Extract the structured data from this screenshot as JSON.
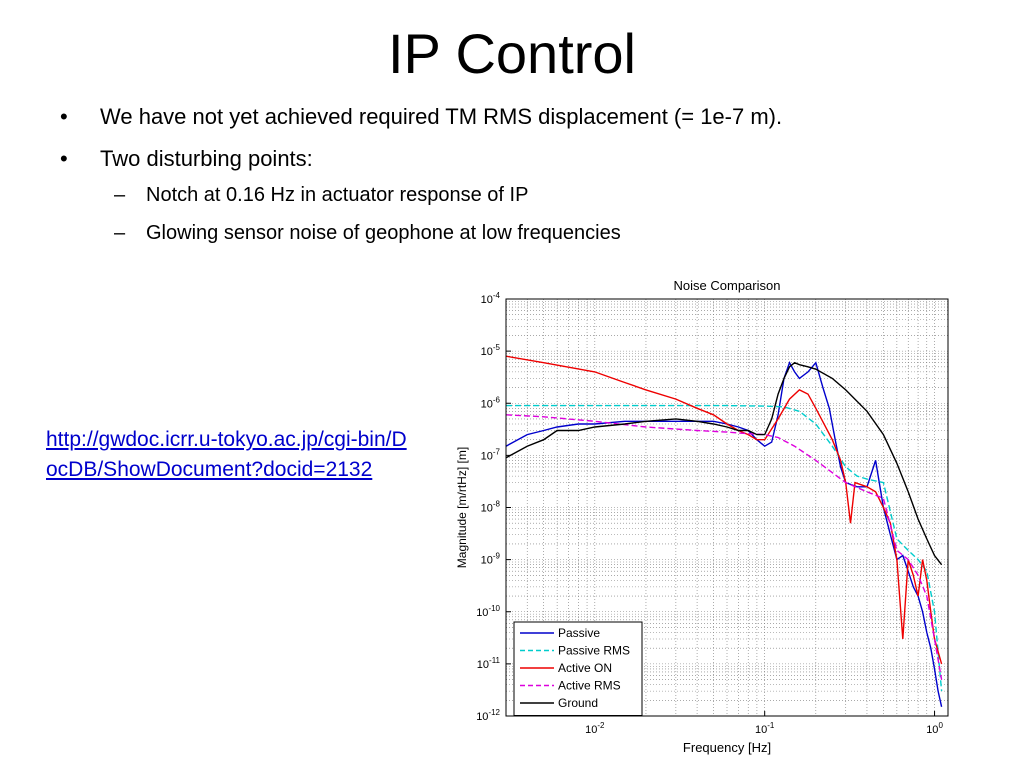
{
  "slide": {
    "title": "IP Control",
    "bullets": [
      {
        "text": "We have not yet achieved required TM RMS displacement (= 1e-7 m).",
        "sub": []
      },
      {
        "text": "Two disturbing points:",
        "sub": [
          "Notch at 0.16 Hz in actuator response of IP",
          "Glowing sensor noise of geophone at low frequencies"
        ]
      }
    ],
    "bullet_char": "•",
    "dash_char": "–",
    "link_text": "http://gwdoc.icrr.u-tokyo.ac.jp/cgi-bin/DocDB/ShowDocument?docid=2132"
  },
  "chart_data": {
    "type": "line",
    "title": "Noise Comparison",
    "xlabel": "Frequency [Hz]",
    "ylabel": "Magnitude [m/rtHz] [m]",
    "x_scale": "log",
    "y_scale": "log",
    "xlim": [
      0.003,
      1.2
    ],
    "ylim": [
      1e-12,
      0.0001
    ],
    "x_ticks": [
      {
        "value": 0.01,
        "label": "10^-2"
      },
      {
        "value": 0.1,
        "label": "10^-1"
      },
      {
        "value": 1,
        "label": "10^0"
      }
    ],
    "y_ticks": [
      {
        "value": 0.0001,
        "label": "10^-4"
      },
      {
        "value": 1e-05,
        "label": "10^-5"
      },
      {
        "value": 1e-06,
        "label": "10^-6"
      },
      {
        "value": 1e-07,
        "label": "10^-7"
      },
      {
        "value": 1e-08,
        "label": "10^-8"
      },
      {
        "value": 1e-09,
        "label": "10^-9"
      },
      {
        "value": 1e-10,
        "label": "10^-10"
      },
      {
        "value": 1e-11,
        "label": "10^-11"
      },
      {
        "value": 1e-12,
        "label": "10^-12"
      }
    ],
    "grid": true,
    "legend_position": "bottom-left",
    "series": [
      {
        "name": "Passive",
        "color": "#0000cc",
        "dash": "solid",
        "points": [
          [
            0.003,
            1.5e-07
          ],
          [
            0.004,
            2.5e-07
          ],
          [
            0.005,
            3e-07
          ],
          [
            0.006,
            3.5e-07
          ],
          [
            0.008,
            4e-07
          ],
          [
            0.01,
            4e-07
          ],
          [
            0.015,
            4.5e-07
          ],
          [
            0.02,
            4.5e-07
          ],
          [
            0.03,
            4.5e-07
          ],
          [
            0.04,
            4.5e-07
          ],
          [
            0.05,
            4.5e-07
          ],
          [
            0.06,
            4e-07
          ],
          [
            0.07,
            3.5e-07
          ],
          [
            0.08,
            3e-07
          ],
          [
            0.09,
            2e-07
          ],
          [
            0.1,
            1.5e-07
          ],
          [
            0.11,
            1.8e-07
          ],
          [
            0.12,
            6e-07
          ],
          [
            0.13,
            3e-06
          ],
          [
            0.14,
            6e-06
          ],
          [
            0.15,
            4e-06
          ],
          [
            0.16,
            3e-06
          ],
          [
            0.18,
            4e-06
          ],
          [
            0.2,
            6e-06
          ],
          [
            0.22,
            2e-06
          ],
          [
            0.24,
            8e-07
          ],
          [
            0.26,
            2e-07
          ],
          [
            0.28,
            6e-08
          ],
          [
            0.3,
            3e-08
          ],
          [
            0.35,
            2.5e-08
          ],
          [
            0.4,
            2.5e-08
          ],
          [
            0.45,
            8e-08
          ],
          [
            0.5,
            1e-08
          ],
          [
            0.55,
            3e-09
          ],
          [
            0.6,
            1e-09
          ],
          [
            0.65,
            1.2e-09
          ],
          [
            0.7,
            6e-10
          ],
          [
            0.75,
            3e-10
          ],
          [
            0.8,
            2e-10
          ],
          [
            0.85,
            1e-10
          ],
          [
            0.9,
            4e-11
          ],
          [
            0.95,
            2e-11
          ],
          [
            1.0,
            8e-12
          ],
          [
            1.05,
            3e-12
          ],
          [
            1.1,
            1.5e-12
          ]
        ]
      },
      {
        "name": "Passive RMS",
        "color": "#00cccc",
        "dash": "dashed",
        "points": [
          [
            0.003,
            9e-07
          ],
          [
            0.01,
            9e-07
          ],
          [
            0.03,
            9e-07
          ],
          [
            0.06,
            9e-07
          ],
          [
            0.1,
            8.8e-07
          ],
          [
            0.13,
            8.5e-07
          ],
          [
            0.16,
            7e-07
          ],
          [
            0.2,
            4e-07
          ],
          [
            0.25,
            1.5e-07
          ],
          [
            0.3,
            6e-08
          ],
          [
            0.35,
            4e-08
          ],
          [
            0.4,
            3.5e-08
          ],
          [
            0.5,
            3e-08
          ],
          [
            0.6,
            2.5e-09
          ],
          [
            0.7,
            1.5e-09
          ],
          [
            0.8,
            1e-09
          ],
          [
            0.9,
            6e-10
          ],
          [
            1.0,
            1e-10
          ],
          [
            1.1,
            3e-12
          ]
        ]
      },
      {
        "name": "Active ON",
        "color": "#ee0000",
        "dash": "solid",
        "points": [
          [
            0.003,
            8e-06
          ],
          [
            0.005,
            6e-06
          ],
          [
            0.01,
            4e-06
          ],
          [
            0.015,
            2.5e-06
          ],
          [
            0.02,
            1.8e-06
          ],
          [
            0.03,
            1.2e-06
          ],
          [
            0.04,
            8e-07
          ],
          [
            0.05,
            6e-07
          ],
          [
            0.06,
            4e-07
          ],
          [
            0.07,
            3e-07
          ],
          [
            0.08,
            2.5e-07
          ],
          [
            0.09,
            2e-07
          ],
          [
            0.1,
            2e-07
          ],
          [
            0.12,
            5e-07
          ],
          [
            0.14,
            1.2e-06
          ],
          [
            0.16,
            1.8e-06
          ],
          [
            0.18,
            1.5e-06
          ],
          [
            0.2,
            8e-07
          ],
          [
            0.25,
            2e-07
          ],
          [
            0.28,
            8e-08
          ],
          [
            0.3,
            3e-08
          ],
          [
            0.32,
            5e-09
          ],
          [
            0.34,
            3e-08
          ],
          [
            0.4,
            2.5e-08
          ],
          [
            0.45,
            2e-08
          ],
          [
            0.5,
            1e-08
          ],
          [
            0.55,
            5e-09
          ],
          [
            0.6,
            1e-09
          ],
          [
            0.65,
            3e-11
          ],
          [
            0.7,
            1e-09
          ],
          [
            0.75,
            5e-10
          ],
          [
            0.8,
            2e-10
          ],
          [
            0.85,
            1e-09
          ],
          [
            0.9,
            4e-10
          ],
          [
            0.95,
            1e-10
          ],
          [
            1.0,
            3e-11
          ],
          [
            1.1,
            1e-11
          ]
        ]
      },
      {
        "name": "Active RMS",
        "color": "#dd00dd",
        "dash": "dashed",
        "points": [
          [
            0.003,
            6e-07
          ],
          [
            0.005,
            5.5e-07
          ],
          [
            0.01,
            4.5e-07
          ],
          [
            0.02,
            3.5e-07
          ],
          [
            0.04,
            3e-07
          ],
          [
            0.06,
            2.8e-07
          ],
          [
            0.08,
            2.6e-07
          ],
          [
            0.1,
            2.5e-07
          ],
          [
            0.12,
            2.2e-07
          ],
          [
            0.15,
            1.5e-07
          ],
          [
            0.2,
            8e-08
          ],
          [
            0.3,
            3e-08
          ],
          [
            0.4,
            2e-08
          ],
          [
            0.5,
            1.5e-08
          ],
          [
            0.6,
            1.5e-09
          ],
          [
            0.7,
            1e-09
          ],
          [
            0.8,
            5e-10
          ],
          [
            0.9,
            2e-10
          ],
          [
            1.0,
            3e-11
          ],
          [
            1.1,
            5e-12
          ]
        ]
      },
      {
        "name": "Ground",
        "color": "#000000",
        "dash": "solid",
        "points": [
          [
            0.003,
            9e-08
          ],
          [
            0.004,
            1.5e-07
          ],
          [
            0.005,
            2e-07
          ],
          [
            0.006,
            3e-07
          ],
          [
            0.008,
            3e-07
          ],
          [
            0.01,
            3.5e-07
          ],
          [
            0.015,
            4e-07
          ],
          [
            0.02,
            4.5e-07
          ],
          [
            0.03,
            5e-07
          ],
          [
            0.04,
            4.5e-07
          ],
          [
            0.05,
            4e-07
          ],
          [
            0.06,
            3.5e-07
          ],
          [
            0.07,
            3e-07
          ],
          [
            0.08,
            3e-07
          ],
          [
            0.09,
            2.5e-07
          ],
          [
            0.1,
            2.5e-07
          ],
          [
            0.11,
            5e-07
          ],
          [
            0.12,
            1.5e-06
          ],
          [
            0.13,
            3e-06
          ],
          [
            0.14,
            5e-06
          ],
          [
            0.15,
            6e-06
          ],
          [
            0.16,
            5.5e-06
          ],
          [
            0.18,
            5e-06
          ],
          [
            0.2,
            4.5e-06
          ],
          [
            0.25,
            3e-06
          ],
          [
            0.3,
            1.8e-06
          ],
          [
            0.4,
            7e-07
          ],
          [
            0.5,
            2.5e-07
          ],
          [
            0.6,
            7e-08
          ],
          [
            0.7,
            2e-08
          ],
          [
            0.8,
            6e-09
          ],
          [
            0.9,
            2.5e-09
          ],
          [
            1.0,
            1.2e-09
          ],
          [
            1.1,
            8e-10
          ]
        ]
      }
    ]
  }
}
